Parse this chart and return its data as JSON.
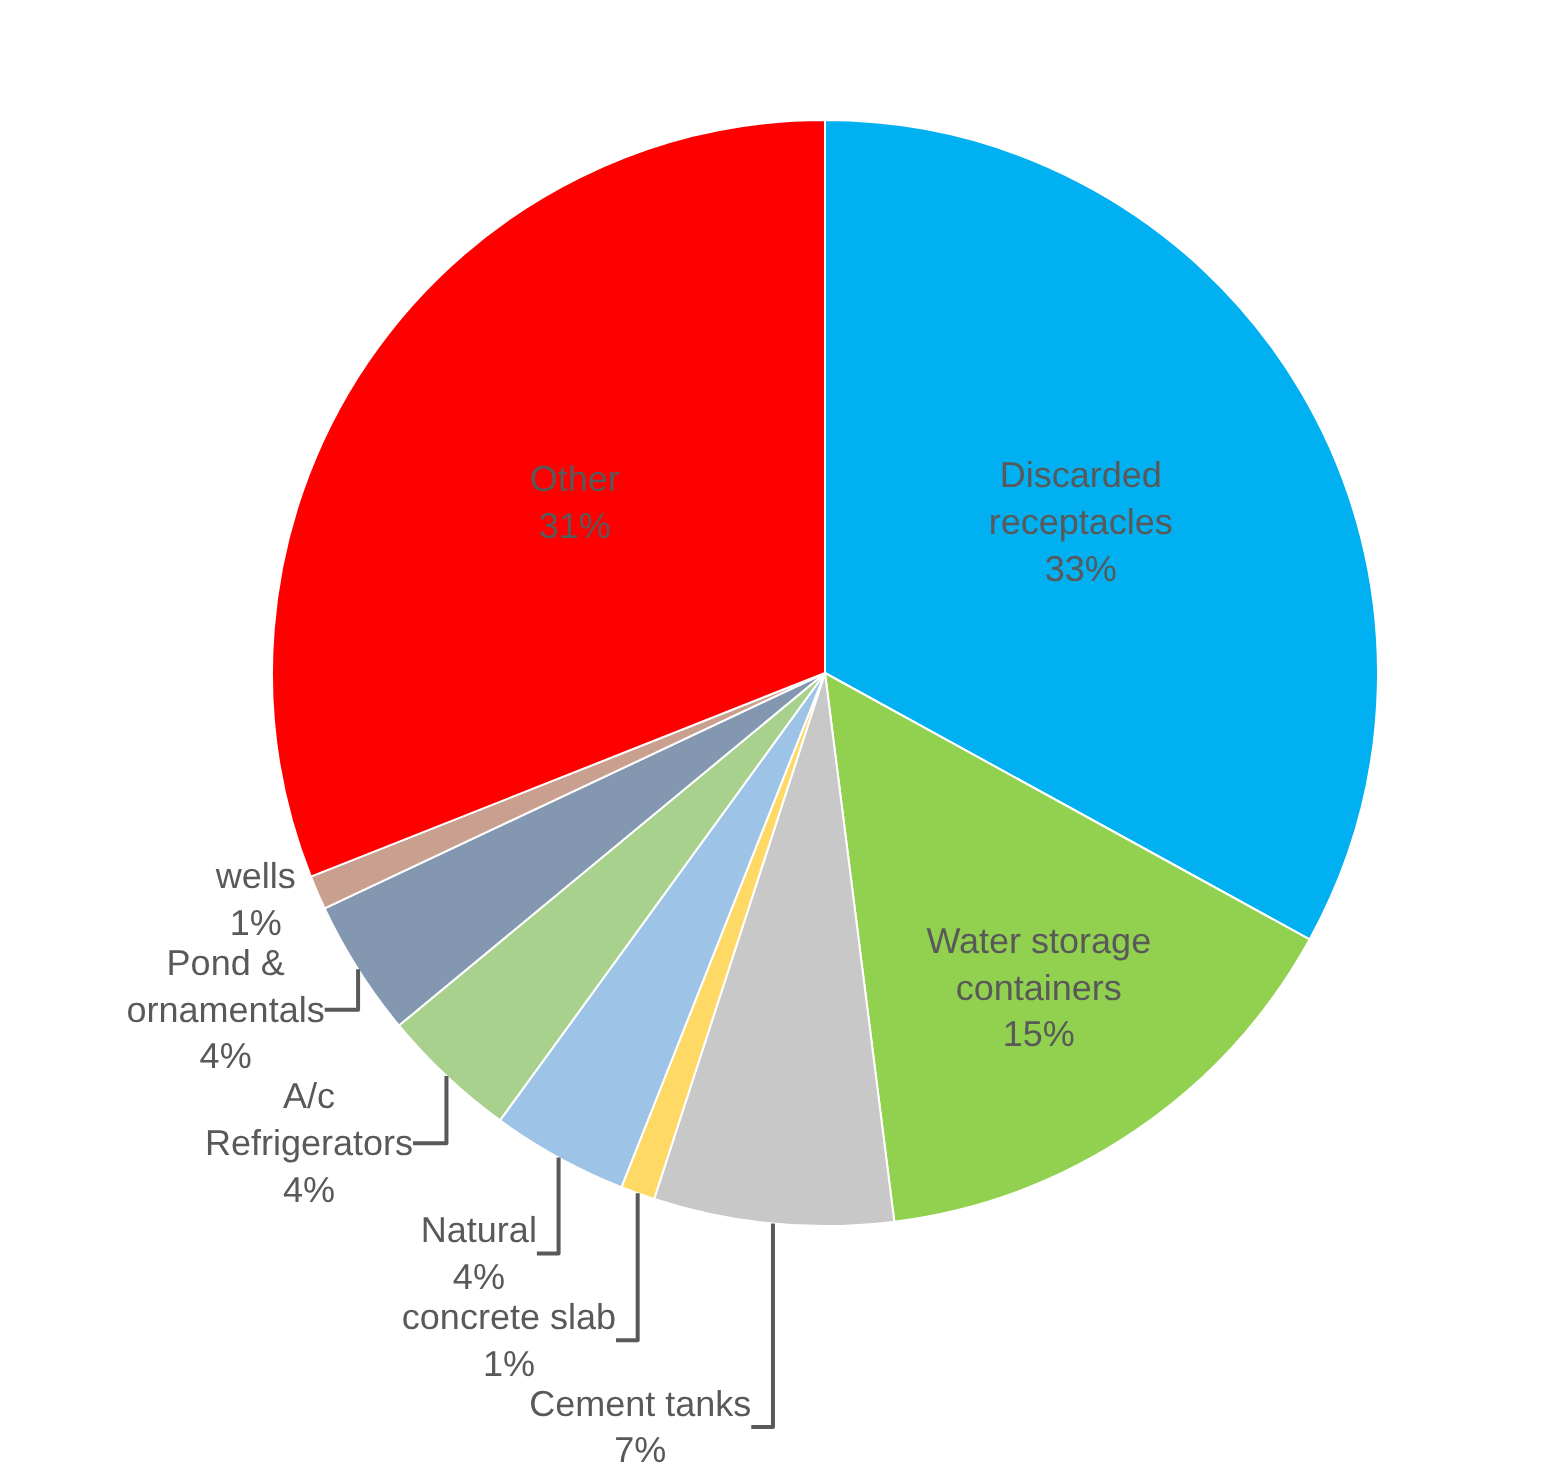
{
  "chart_data": {
    "type": "pie",
    "categories": [
      "Discarded\nreceptacles",
      "Water storage\ncontainers",
      "Cement tanks",
      "concrete slab",
      "Natural",
      "A/c\nRefrigerators",
      "Pond &\nornamentals",
      "wells",
      "Other"
    ],
    "values": [
      33,
      15,
      7,
      1,
      4,
      4,
      4,
      1,
      31
    ],
    "value_labels": [
      "33%",
      "15%",
      "7%",
      "1%",
      "4%",
      "4%",
      "4%",
      "1%",
      "31%"
    ],
    "colors": [
      "#00b0f0",
      "#92d050",
      "#c8c8c8",
      "#ffd966",
      "#9dc3e6",
      "#a9d18e",
      "#8497b0",
      "#c9a08f",
      "#ff0000"
    ],
    "legend": false
  }
}
